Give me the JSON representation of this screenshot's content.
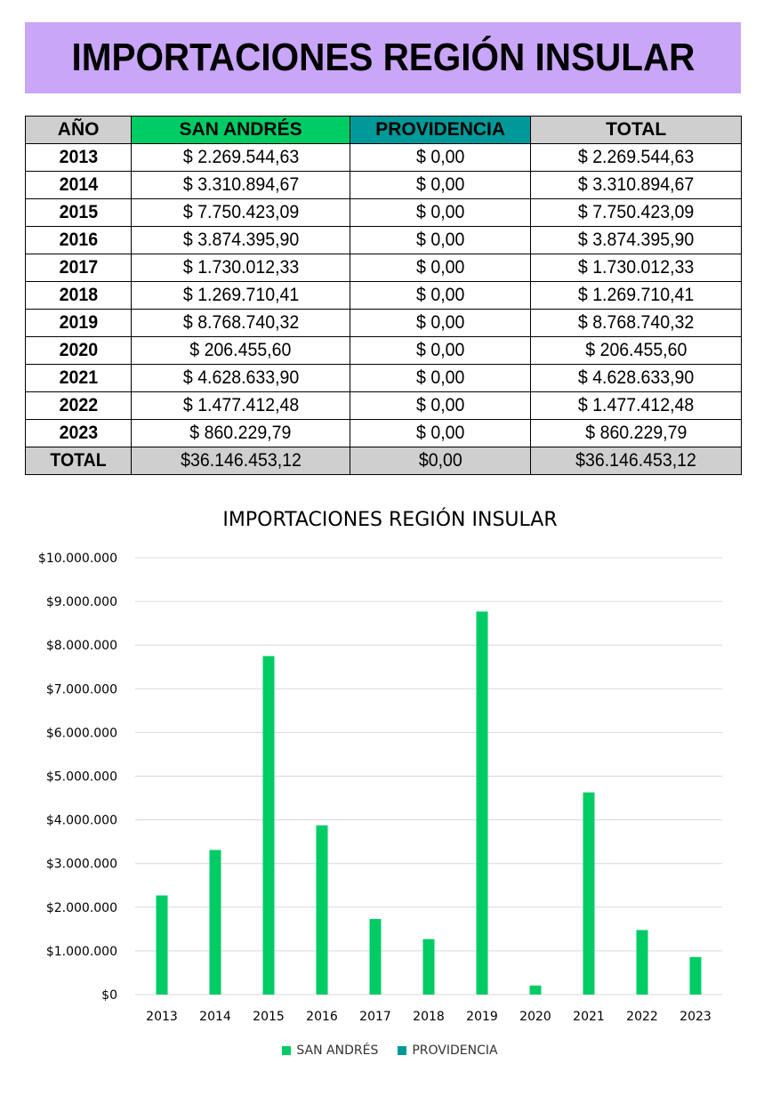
{
  "banner": {
    "title": "IMPORTACIONES REGIÓN INSULAR"
  },
  "table": {
    "headers": {
      "year": "AÑO",
      "san_andres": "SAN ANDRÉS",
      "providencia": "PROVIDENCIA",
      "total": "TOTAL"
    },
    "rows": [
      {
        "year": "2013",
        "san_andres": "$ 2.269.544,63",
        "providencia": "$ 0,00",
        "total": "$ 2.269.544,63"
      },
      {
        "year": "2014",
        "san_andres": "$ 3.310.894,67",
        "providencia": "$ 0,00",
        "total": "$ 3.310.894,67"
      },
      {
        "year": "2015",
        "san_andres": "$ 7.750.423,09",
        "providencia": "$ 0,00",
        "total": "$ 7.750.423,09"
      },
      {
        "year": "2016",
        "san_andres": "$ 3.874.395,90",
        "providencia": "$ 0,00",
        "total": "$ 3.874.395,90"
      },
      {
        "year": "2017",
        "san_andres": "$ 1.730.012,33",
        "providencia": "$ 0,00",
        "total": "$ 1.730.012,33"
      },
      {
        "year": "2018",
        "san_andres": "$ 1.269.710,41",
        "providencia": "$ 0,00",
        "total": "$ 1.269.710,41"
      },
      {
        "year": "2019",
        "san_andres": "$ 8.768.740,32",
        "providencia": "$ 0,00",
        "total": "$ 8.768.740,32"
      },
      {
        "year": "2020",
        "san_andres": "$ 206.455,60",
        "providencia": "$ 0,00",
        "total": "$ 206.455,60"
      },
      {
        "year": "2021",
        "san_andres": "$ 4.628.633,90",
        "providencia": "$ 0,00",
        "total": "$ 4.628.633,90"
      },
      {
        "year": "2022",
        "san_andres": "$ 1.477.412,48",
        "providencia": "$ 0,00",
        "total": "$ 1.477.412,48"
      },
      {
        "year": "2023",
        "san_andres": "$ 860.229,79",
        "providencia": "$ 0,00",
        "total": "$ 860.229,79"
      }
    ],
    "total_row": {
      "year": "TOTAL",
      "san_andres": "$36.146.453,12",
      "providencia": "$0,00",
      "total": "$36.146.453,12"
    }
  },
  "colors": {
    "banner": "#c9a6f7",
    "san_andres": "#00cc66",
    "providencia": "#009999",
    "header_gray": "#d0cfcf",
    "gridline": "#d9d9d9"
  },
  "chart_data": {
    "type": "bar",
    "title": "IMPORTACIONES REGIÓN INSULAR",
    "categories": [
      "2013",
      "2014",
      "2015",
      "2016",
      "2017",
      "2018",
      "2019",
      "2020",
      "2021",
      "2022",
      "2023"
    ],
    "series": [
      {
        "name": "SAN ANDRÉS",
        "values": [
          2269544.63,
          3310894.67,
          7750423.09,
          3874395.9,
          1730012.33,
          1269710.41,
          8768740.32,
          206455.6,
          4628633.9,
          1477412.48,
          860229.79
        ]
      },
      {
        "name": "PROVIDENCIA",
        "values": [
          0,
          0,
          0,
          0,
          0,
          0,
          0,
          0,
          0,
          0,
          0
        ]
      }
    ],
    "ylim": [
      0,
      10000000
    ],
    "yticks": [
      0,
      1000000,
      2000000,
      3000000,
      4000000,
      5000000,
      6000000,
      7000000,
      8000000,
      9000000,
      10000000
    ],
    "ytick_labels": [
      "$0",
      "$1.000.000",
      "$2.000.000",
      "$3.000.000",
      "$4.000.000",
      "$5.000.000",
      "$6.000.000",
      "$7.000.000",
      "$8.000.000",
      "$9.000.000",
      "$10.000.000"
    ],
    "xlabel": "",
    "ylabel": "",
    "grid": true,
    "legend_position": "bottom"
  }
}
